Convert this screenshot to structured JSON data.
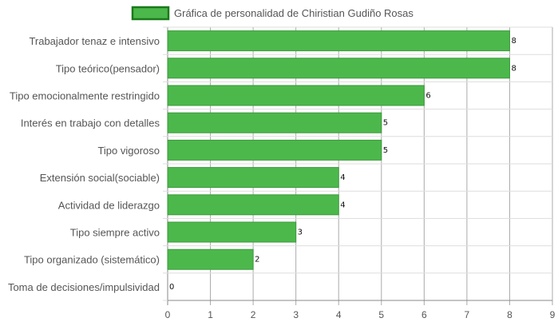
{
  "chart_data": {
    "type": "bar",
    "orientation": "horizontal",
    "legend": {
      "position": "top",
      "label": "Gráfica de personalidad de Chiristian Gudiño Rosas"
    },
    "categories": [
      "Trabajador tenaz e intensivo",
      "Tipo teórico(pensador)",
      "Tipo emocionalmente restringido",
      "Interés en trabajo con detalles",
      "Tipo vigoroso",
      "Extensión social(sociable)",
      "Actividad de liderazgo",
      "Tipo siempre activo",
      "Tipo organizado (sistemático)",
      "Toma de decisiones/impulsividad"
    ],
    "series": [
      {
        "name": "Gráfica de personalidad de Chiristian Gudiño Rosas",
        "values": [
          8,
          8,
          6,
          5,
          5,
          4,
          4,
          3,
          2,
          0
        ]
      }
    ],
    "xlim": [
      0,
      9
    ],
    "xticks": [
      "0",
      "1",
      "2",
      "3",
      "4",
      "5",
      "6",
      "7",
      "8",
      "9"
    ],
    "grid": true,
    "data_labels": true,
    "colors": {
      "bar_fill": "#4cb84c",
      "bar_stroke": "#3a9a3a",
      "legend_stroke": "#1a7a1a",
      "grid": "#dddddd",
      "axis": "#888888"
    }
  }
}
